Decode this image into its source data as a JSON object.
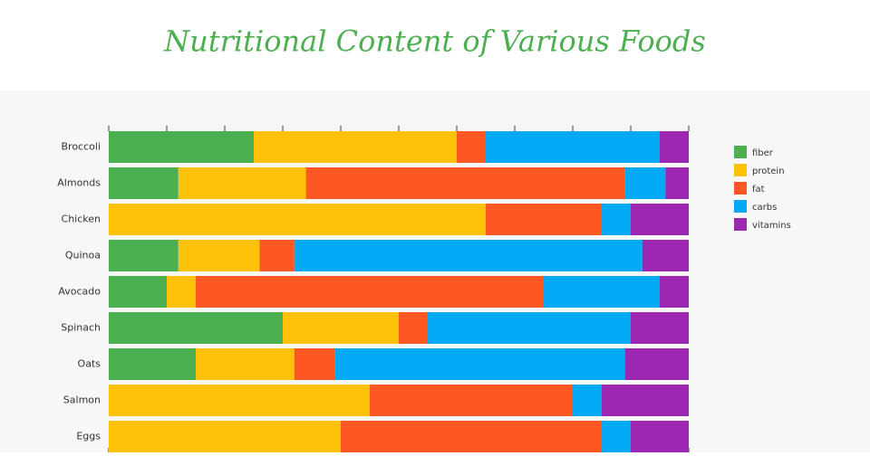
{
  "chart_data": {
    "type": "stacked-bar-horizontal",
    "title": "Nutritional Content of Various Foods",
    "categories": [
      "Broccoli",
      "Almonds",
      "Chicken",
      "Quinoa",
      "Avocado",
      "Spinach",
      "Oats",
      "Salmon",
      "Eggs"
    ],
    "series": [
      {
        "name": "fiber",
        "color": "#4caf50",
        "values": [
          25,
          12,
          0,
          12,
          10,
          30,
          15,
          0,
          0
        ]
      },
      {
        "name": "protein",
        "color": "#ffc107",
        "values": [
          35,
          22,
          65,
          14,
          5,
          20,
          17,
          45,
          40
        ]
      },
      {
        "name": "fat",
        "color": "#ff5722",
        "values": [
          5,
          55,
          20,
          6,
          60,
          5,
          7,
          35,
          45
        ]
      },
      {
        "name": "carbs",
        "color": "#03a9f4",
        "values": [
          30,
          7,
          5,
          60,
          20,
          35,
          50,
          5,
          5
        ]
      },
      {
        "name": "vitamins",
        "color": "#9c27b0",
        "values": [
          5,
          4,
          10,
          8,
          5,
          10,
          11,
          15,
          10
        ]
      }
    ],
    "xlim": [
      0,
      100
    ],
    "xticks": [
      0,
      10,
      20,
      30,
      40,
      50,
      60,
      70,
      80,
      90,
      100
    ],
    "legend": "right"
  }
}
